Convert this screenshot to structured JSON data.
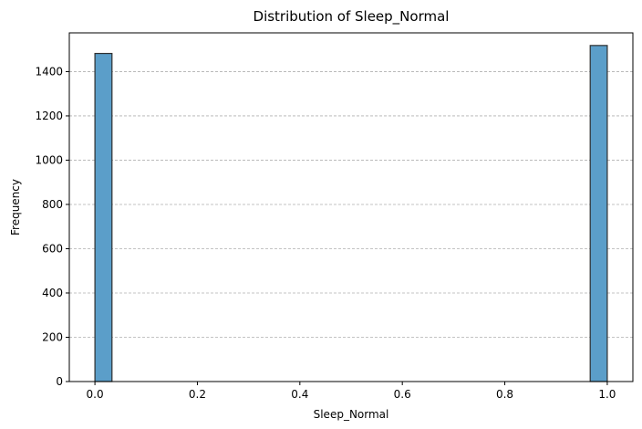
{
  "chart_data": {
    "type": "bar",
    "title": "Distribution of Sleep_Normal",
    "xlabel": "Sleep_Normal",
    "ylabel": "Frequency",
    "xlim": [
      -0.05,
      1.05
    ],
    "ylim": [
      0,
      1575
    ],
    "xticks": [
      0.0,
      0.2,
      0.4,
      0.6,
      0.8,
      1.0
    ],
    "xtick_labels": [
      "0.0",
      "0.2",
      "0.4",
      "0.6",
      "0.8",
      "1.0"
    ],
    "yticks": [
      0,
      200,
      400,
      600,
      800,
      1000,
      1200,
      1400
    ],
    "ytick_labels": [
      "0",
      "200",
      "400",
      "600",
      "800",
      "1000",
      "1200",
      "1400"
    ],
    "bins": [
      {
        "x0": 0.0,
        "x1": 0.0333,
        "value": 1482
      },
      {
        "x0": 0.9667,
        "x1": 1.0,
        "value": 1518
      }
    ],
    "grid": "y-dashed",
    "bar_color": "#5b9ec9",
    "bar_edge_color": "#2f2f2f"
  }
}
